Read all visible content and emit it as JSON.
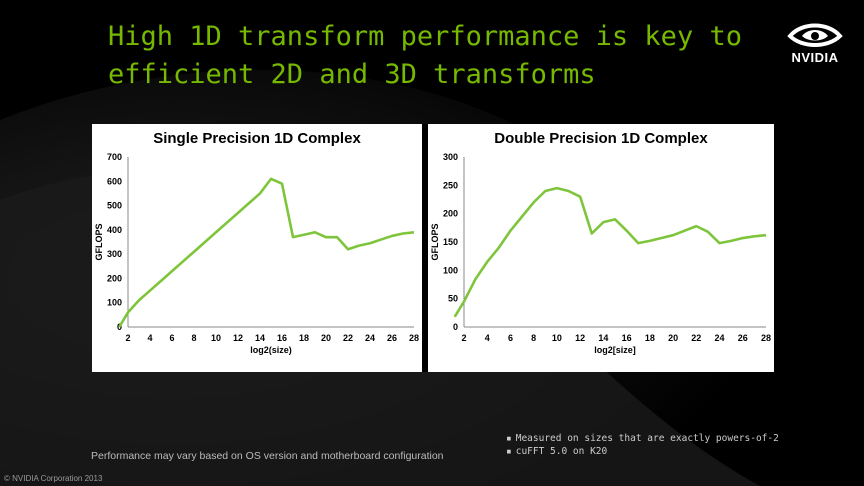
{
  "slide": {
    "title_line1": "High 1D transform performance is key to",
    "title_line2": "efficient 2D and 3D transforms",
    "logo_text": "NVIDIA",
    "footnote": "Performance may vary based on OS version and motherboard configuration",
    "notes": [
      "Measured on sizes that are exactly powers-of-2",
      "cuFFT 5.0 on K20"
    ],
    "copyright": "© NVIDIA Corporation 2013",
    "accent_color": "#76b900",
    "line_color": "#7ec53c"
  },
  "chart_data": [
    {
      "type": "line",
      "title": "Single Precision 1D Complex",
      "xlabel": "log2(size)",
      "ylabel": "GFLOPS",
      "xlim": [
        2,
        28
      ],
      "ylim": [
        0,
        700
      ],
      "xticks": [
        2,
        4,
        6,
        8,
        10,
        12,
        14,
        16,
        18,
        20,
        22,
        24,
        26,
        28
      ],
      "yticks": [
        0,
        100,
        200,
        300,
        400,
        500,
        600,
        700
      ],
      "grid": false,
      "series": [
        {
          "x": [
            1,
            2,
            3,
            4,
            5,
            6,
            7,
            8,
            9,
            10,
            11,
            12,
            13,
            14,
            15,
            16,
            17,
            18,
            19,
            20,
            21,
            22,
            23,
            24,
            25,
            26,
            27,
            28
          ],
          "values": [
            0,
            60,
            110,
            150,
            190,
            230,
            270,
            310,
            350,
            390,
            430,
            470,
            510,
            550,
            610,
            590,
            370,
            380,
            390,
            370,
            370,
            320,
            335,
            345,
            360,
            375,
            385,
            390
          ]
        }
      ]
    },
    {
      "type": "line",
      "title": "Double Precision 1D Complex",
      "xlabel": "log2[size]",
      "ylabel": "GFLOPS",
      "xlim": [
        2,
        28
      ],
      "ylim": [
        0,
        300
      ],
      "xticks": [
        2,
        4,
        6,
        8,
        10,
        12,
        14,
        16,
        18,
        20,
        22,
        24,
        26,
        28
      ],
      "yticks": [
        0,
        50,
        100,
        150,
        200,
        250,
        300
      ],
      "grid": false,
      "series": [
        {
          "x": [
            1,
            2,
            3,
            4,
            5,
            6,
            7,
            8,
            9,
            10,
            11,
            12,
            13,
            14,
            15,
            16,
            17,
            18,
            19,
            20,
            21,
            22,
            23,
            24,
            25,
            26,
            27,
            28
          ],
          "values": [
            18,
            45,
            85,
            115,
            140,
            170,
            195,
            220,
            240,
            245,
            240,
            230,
            165,
            185,
            190,
            170,
            148,
            152,
            157,
            162,
            170,
            178,
            168,
            148,
            152,
            157,
            160,
            162
          ]
        }
      ]
    }
  ]
}
